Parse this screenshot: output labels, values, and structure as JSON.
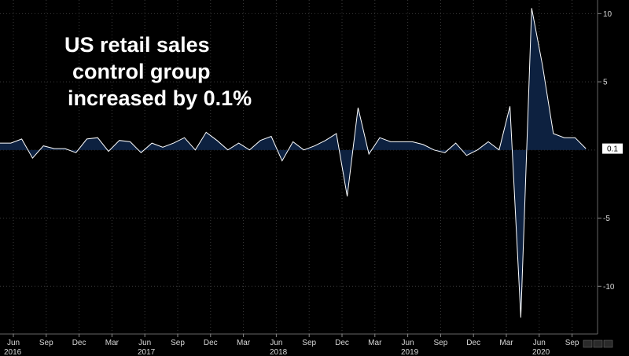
{
  "overlay": {
    "line1": "US retail sales",
    "line2": "control group",
    "line3": "increased by 0.1%"
  },
  "chart_data": {
    "type": "area",
    "title": "",
    "xlabel": "",
    "ylabel": "",
    "ylim": [
      -13.5,
      11
    ],
    "yticks": [
      10,
      5,
      -5,
      -10
    ],
    "x_month_ticks": [
      "Jun",
      "Sep",
      "Dec",
      "Mar",
      "Jun",
      "Sep",
      "Dec",
      "Mar",
      "Jun",
      "Sep",
      "Dec",
      "Mar",
      "Jun",
      "Sep",
      "Dec",
      "Mar",
      "Jun",
      "Sep"
    ],
    "x_year_ticks": [
      "2016",
      "2017",
      "2018",
      "2019",
      "2020"
    ],
    "last_value_label": "0.1",
    "colors": {
      "fill": "#0d2140",
      "line": "#ffffff",
      "background": "#000000",
      "grid": "#3a3a3a"
    },
    "series": [
      {
        "values": [
          0.5,
          0.5,
          0.8,
          -0.6,
          0.3,
          0.1,
          0.1,
          -0.2,
          0.8,
          0.9,
          -0.1,
          0.7,
          0.6,
          -0.2,
          0.5,
          0.2,
          0.5,
          0.9,
          0.0,
          1.3,
          0.7,
          0.0,
          0.5,
          0.0,
          0.7,
          1.0,
          -0.8,
          0.6,
          0.0,
          0.3,
          0.7,
          1.2,
          -3.4,
          3.1,
          -0.3,
          0.9,
          0.6,
          0.6,
          0.6,
          0.4,
          0.0,
          -0.2,
          0.5,
          -0.4,
          0.0,
          0.6,
          0.0,
          3.2,
          -12.3,
          10.4,
          6.2,
          1.2,
          0.9,
          0.9,
          0.1
        ]
      }
    ]
  }
}
